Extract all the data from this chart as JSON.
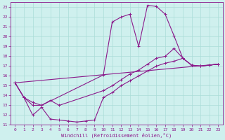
{
  "xlabel": "Windchill (Refroidissement éolien,°C)",
  "xlim": [
    -0.5,
    23.5
  ],
  "ylim": [
    11,
    23.5
  ],
  "xticks": [
    0,
    1,
    2,
    3,
    4,
    5,
    6,
    7,
    8,
    9,
    10,
    11,
    12,
    13,
    14,
    15,
    16,
    17,
    18,
    19,
    20,
    21,
    22,
    23
  ],
  "yticks": [
    11,
    12,
    13,
    14,
    15,
    16,
    17,
    18,
    19,
    20,
    21,
    22,
    23
  ],
  "bg_color": "#cff0ee",
  "grid_color": "#aaddd8",
  "line_color": "#8B1A8B",
  "curves": [
    {
      "x": [
        0,
        1,
        2,
        3,
        10,
        11,
        12,
        13,
        14,
        15,
        16,
        17,
        18,
        19,
        20,
        21,
        22,
        23
      ],
      "y": [
        15.3,
        13.8,
        13.0,
        13.0,
        16.1,
        21.5,
        22.0,
        22.3,
        19.0,
        23.2,
        23.1,
        22.3,
        20.1,
        17.8,
        17.1,
        17.0,
        17.1,
        17.2
      ]
    },
    {
      "x": [
        0,
        1,
        2,
        3,
        4,
        5,
        10,
        11,
        12,
        13,
        14,
        15,
        16,
        17,
        18,
        19,
        20,
        21,
        22,
        23
      ],
      "y": [
        15.3,
        13.8,
        13.3,
        13.0,
        13.5,
        13.0,
        14.5,
        15.0,
        15.6,
        16.2,
        16.6,
        17.2,
        17.8,
        18.0,
        18.8,
        17.8,
        17.1,
        17.0,
        17.1,
        17.2
      ]
    },
    {
      "x": [
        0,
        23
      ],
      "y": [
        15.3,
        17.2
      ]
    },
    {
      "x": [
        0,
        1,
        2,
        3,
        4,
        5,
        6,
        7,
        8,
        9,
        10,
        11,
        12,
        13,
        14,
        15,
        16,
        17,
        18,
        19,
        20,
        21,
        22,
        23
      ],
      "y": [
        15.3,
        13.8,
        12.0,
        12.8,
        11.6,
        11.5,
        11.4,
        11.3,
        11.4,
        11.5,
        13.8,
        14.3,
        15.0,
        15.5,
        16.0,
        16.5,
        17.0,
        17.3,
        17.5,
        17.8,
        17.1,
        17.0,
        17.1,
        17.2
      ]
    }
  ]
}
